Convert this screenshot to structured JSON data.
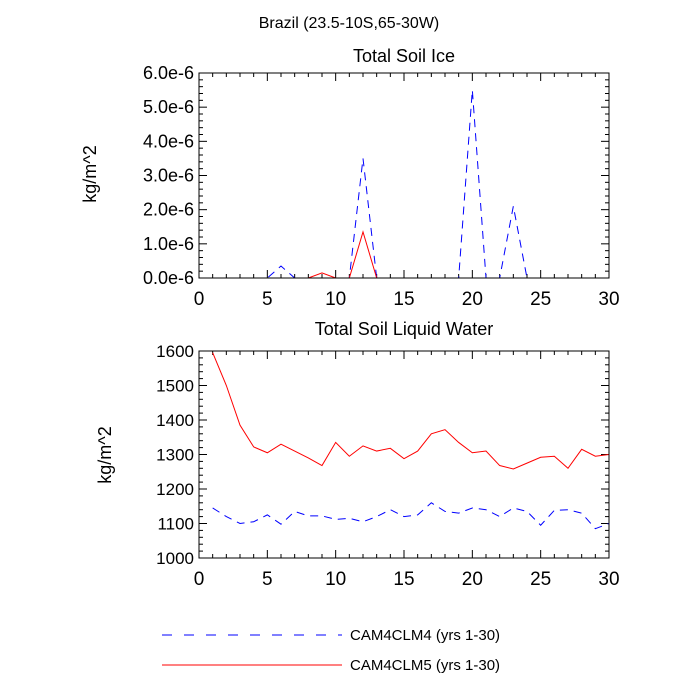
{
  "figure": {
    "main_title": "Brazil (23.5-10S,65-30W)"
  },
  "legend": [
    {
      "label": "CAM4CLM4 (yrs 1-30)",
      "color": "#0000ff",
      "style": "dashed"
    },
    {
      "label": "CAM4CLM5 (yrs 1-30)",
      "color": "#ff0000",
      "style": "solid"
    }
  ],
  "chart_data": [
    {
      "type": "line",
      "title": "Total Soil Ice",
      "xlabel": "",
      "ylabel": "kg/m^2",
      "xlim": [
        0,
        30
      ],
      "ylim": [
        0,
        6e-06
      ],
      "x_ticks": [
        0,
        5,
        10,
        15,
        20,
        25,
        30
      ],
      "x_tick_labels": [
        "0",
        "5",
        "10",
        "15",
        "20",
        "25",
        "30"
      ],
      "y_ticks": [
        0,
        1e-06,
        2e-06,
        3e-06,
        4e-06,
        5e-06,
        6e-06
      ],
      "y_tick_labels": [
        "0.0e-6",
        "1.0e-6",
        "2.0e-6",
        "3.0e-6",
        "4.0e-6",
        "5.0e-6",
        "6.0e-6"
      ],
      "x": [
        1,
        2,
        3,
        4,
        5,
        6,
        7,
        8,
        9,
        10,
        11,
        12,
        13,
        14,
        15,
        16,
        17,
        18,
        19,
        20,
        21,
        22,
        23,
        24,
        25,
        26,
        27,
        28,
        29,
        30
      ],
      "series": [
        {
          "name": "CAM4CLM4 (yrs 1-30)",
          "color": "#0000ff",
          "style": "dashed",
          "values": [
            0,
            0,
            0,
            0,
            0,
            3.5e-07,
            0,
            0,
            0,
            0,
            0,
            3.5e-06,
            0,
            0,
            0,
            0,
            0,
            0,
            0,
            5.5e-06,
            0,
            0,
            2.1e-06,
            0,
            0,
            0,
            0,
            0,
            0,
            0
          ]
        },
        {
          "name": "CAM4CLM5 (yrs 1-30)",
          "color": "#ff0000",
          "style": "solid",
          "values": [
            0,
            0,
            0,
            0,
            0,
            0,
            0,
            0,
            1.5e-07,
            0,
            0,
            1.35e-06,
            0,
            0,
            0,
            0,
            0,
            0,
            0,
            0,
            0,
            0,
            0,
            0,
            0,
            0,
            0,
            0,
            0,
            0
          ]
        }
      ]
    },
    {
      "type": "line",
      "title": "Total Soil Liquid Water",
      "xlabel": "",
      "ylabel": "kg/m^2",
      "xlim": [
        0,
        30
      ],
      "ylim": [
        1000,
        1600
      ],
      "x_ticks": [
        0,
        5,
        10,
        15,
        20,
        25,
        30
      ],
      "x_tick_labels": [
        "0",
        "5",
        "10",
        "15",
        "20",
        "25",
        "30"
      ],
      "y_ticks": [
        1000,
        1100,
        1200,
        1300,
        1400,
        1500,
        1600
      ],
      "y_tick_labels": [
        "1000",
        "1100",
        "1200",
        "1300",
        "1400",
        "1500",
        "1600"
      ],
      "x": [
        1,
        2,
        3,
        4,
        5,
        6,
        7,
        8,
        9,
        10,
        11,
        12,
        13,
        14,
        15,
        16,
        17,
        18,
        19,
        20,
        21,
        22,
        23,
        24,
        25,
        26,
        27,
        28,
        29,
        30
      ],
      "series": [
        {
          "name": "CAM4CLM4 (yrs 1-30)",
          "color": "#0000ff",
          "style": "dashed",
          "values": [
            1145,
            1120,
            1100,
            1105,
            1125,
            1098,
            1135,
            1122,
            1122,
            1112,
            1115,
            1105,
            1120,
            1140,
            1120,
            1125,
            1160,
            1135,
            1130,
            1145,
            1140,
            1120,
            1145,
            1135,
            1095,
            1138,
            1140,
            1130,
            1085,
            1100
          ]
        },
        {
          "name": "CAM4CLM5 (yrs 1-30)",
          "color": "#ff0000",
          "style": "solid",
          "values": [
            1595,
            1500,
            1385,
            1322,
            1305,
            1330,
            1310,
            1290,
            1268,
            1335,
            1295,
            1325,
            1310,
            1318,
            1288,
            1310,
            1360,
            1372,
            1335,
            1305,
            1310,
            1268,
            1258,
            1275,
            1292,
            1295,
            1260,
            1315,
            1295,
            1300
          ]
        }
      ]
    }
  ]
}
